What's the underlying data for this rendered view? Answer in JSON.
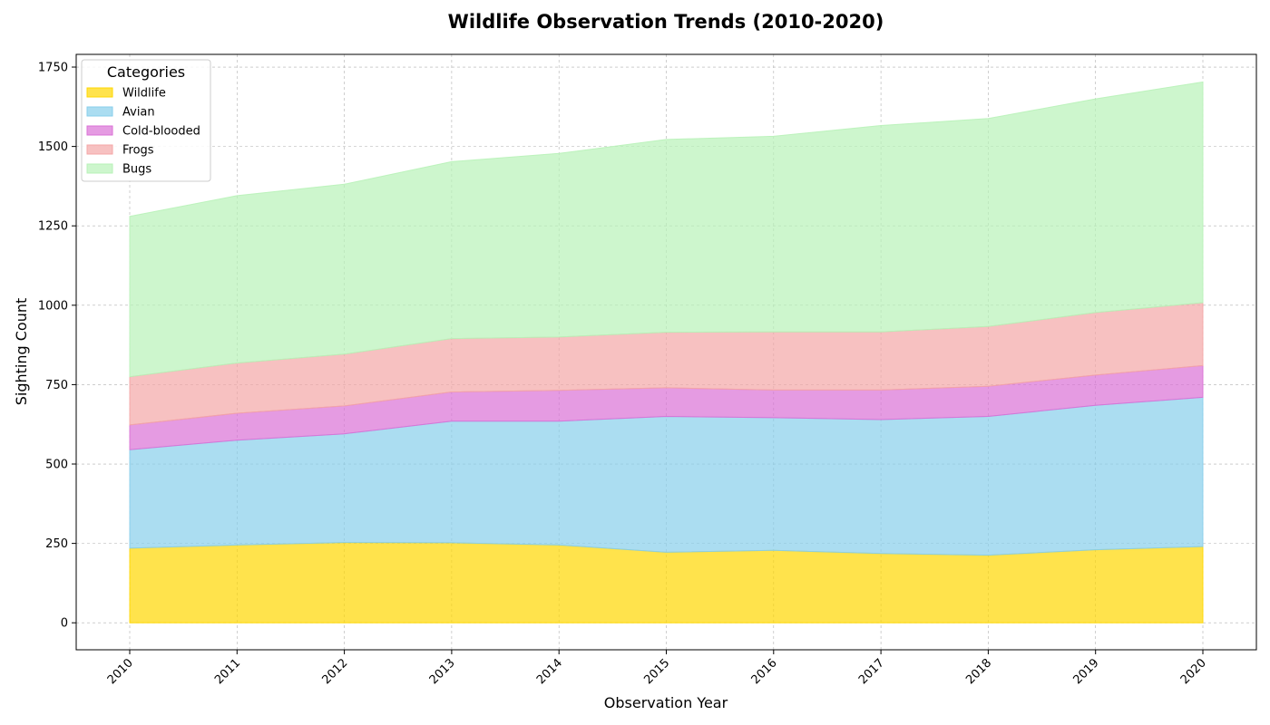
{
  "chart_data": {
    "type": "area",
    "stacked": true,
    "title": "Wildlife Observation Trends (2010-2020)",
    "xlabel": "Observation Year",
    "ylabel": "Sighting Count",
    "x": [
      "2010",
      "2011",
      "2012",
      "2013",
      "2014",
      "2015",
      "2016",
      "2017",
      "2018",
      "2019",
      "2020"
    ],
    "ylim": [
      -85,
      1790
    ],
    "yticks": [
      0,
      250,
      500,
      750,
      1000,
      1250,
      1500,
      1750
    ],
    "grid": true,
    "legend": {
      "title": "Categories",
      "placement": "top-left"
    },
    "series": [
      {
        "name": "Wildlife",
        "color": "#FFD700",
        "values": [
          235,
          245,
          253,
          252,
          245,
          222,
          228,
          218,
          213,
          230,
          240
        ]
      },
      {
        "name": "Avian",
        "color": "#87CEEB",
        "values": [
          310,
          330,
          342,
          383,
          390,
          428,
          418,
          422,
          437,
          455,
          470
        ]
      },
      {
        "name": "Cold-blooded",
        "color": "#DA70D6",
        "values": [
          78,
          85,
          88,
          92,
          97,
          90,
          87,
          93,
          95,
          95,
          100
        ]
      },
      {
        "name": "Frogs",
        "color": "#F4A6A6",
        "values": [
          152,
          158,
          163,
          168,
          168,
          175,
          183,
          183,
          188,
          197,
          198
        ]
      },
      {
        "name": "Bugs",
        "color": "#B8F2B8",
        "values": [
          505,
          527,
          535,
          557,
          578,
          607,
          616,
          650,
          655,
          673,
          695
        ]
      }
    ]
  }
}
